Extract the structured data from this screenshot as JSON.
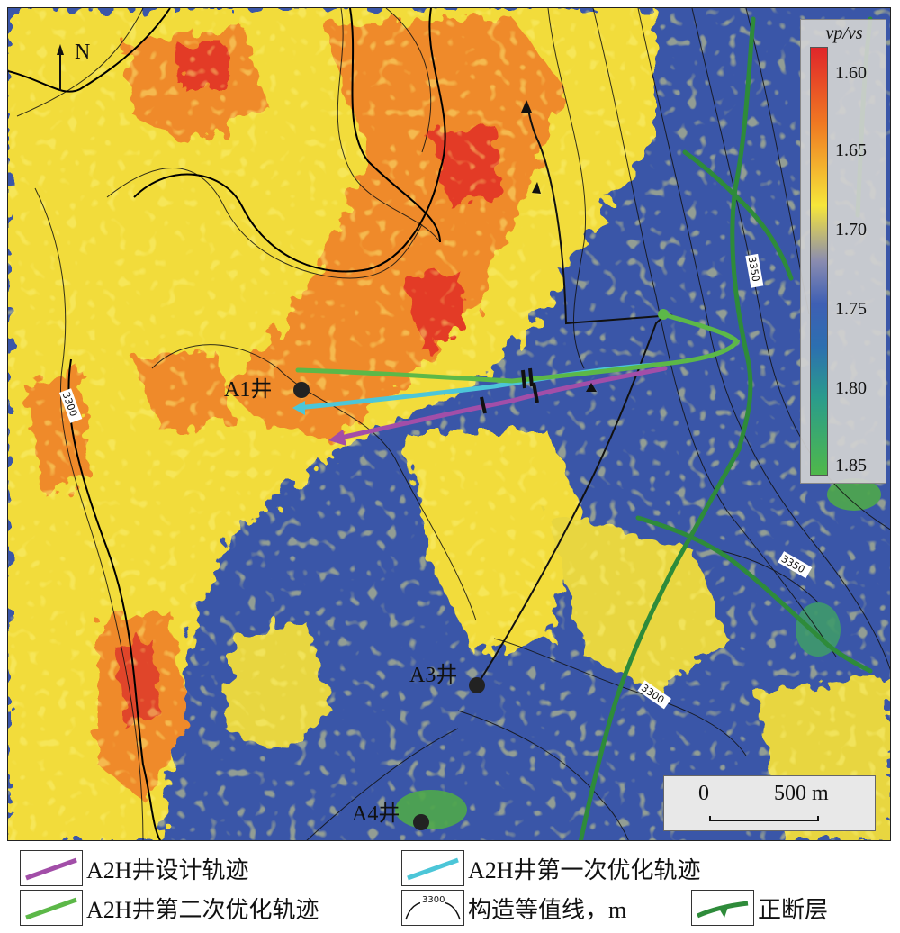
{
  "map": {
    "north_label": "N",
    "contour_labels": [
      "3300",
      "3350",
      "3350",
      "3300"
    ],
    "wells": [
      {
        "id": "a1",
        "label": "A1井"
      },
      {
        "id": "a3",
        "label": "A3井"
      },
      {
        "id": "a4",
        "label": "A4井"
      }
    ]
  },
  "colorbar": {
    "title": "vp/vs",
    "ticks": [
      "1.60",
      "1.65",
      "1.70",
      "1.75",
      "1.80",
      "1.85"
    ],
    "colors": [
      "#e0262a",
      "#f07a22",
      "#f6e63a",
      "#8a8cb0",
      "#3e5fb4",
      "#2a9c8c",
      "#4fb84a"
    ]
  },
  "scalebar": {
    "zero": "0",
    "max": "500 m"
  },
  "legend": {
    "items": [
      {
        "id": "design",
        "label": "A2H井设计轨迹",
        "color": "#a24ea8"
      },
      {
        "id": "first",
        "label": "A2H井第一次优化轨迹",
        "color": "#4cc6d8"
      },
      {
        "id": "second",
        "label": "A2H井第二次优化轨迹",
        "color": "#5cb848"
      },
      {
        "id": "contour",
        "label": "构造等值线，m",
        "swatch_text": "3300"
      },
      {
        "id": "fault",
        "label": "正断层",
        "color": "#2e8b3a"
      }
    ]
  }
}
